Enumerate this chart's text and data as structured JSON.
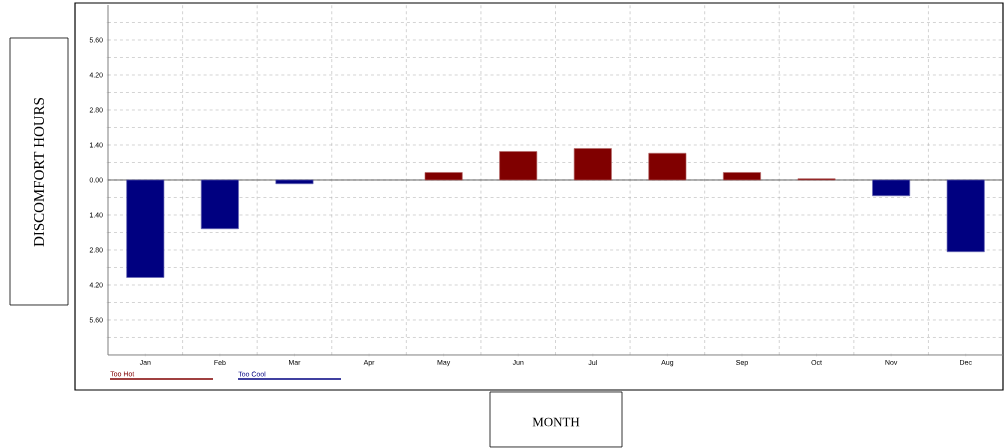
{
  "chart_data": {
    "type": "bar",
    "xlabel": "MONTH",
    "ylabel": "DISCOMFORT HOURS",
    "categories": [
      "Jan",
      "Feb",
      "Mar",
      "Apr",
      "May",
      "Jun",
      "Jul",
      "Aug",
      "Sep",
      "Oct",
      "Nov",
      "Dec"
    ],
    "series": [
      {
        "name": "Too Hot",
        "color": "#800000",
        "values": [
          null,
          null,
          null,
          null,
          0.3,
          1.14,
          1.26,
          1.07,
          0.3,
          0.05,
          null,
          null
        ]
      },
      {
        "name": "Too Cool",
        "color": "#000080",
        "values": [
          -3.9,
          -1.95,
          -0.15,
          null,
          null,
          null,
          null,
          null,
          null,
          null,
          -0.63,
          -2.87
        ]
      }
    ],
    "ylim": [
      -7.0,
      7.0
    ],
    "yticks": [
      {
        "value": -6.3,
        "label": null
      },
      {
        "value": -5.6,
        "label": "5.60"
      },
      {
        "value": -4.9,
        "label": null
      },
      {
        "value": -4.2,
        "label": "4.20"
      },
      {
        "value": -3.5,
        "label": null
      },
      {
        "value": -2.8,
        "label": "2.80"
      },
      {
        "value": -2.1,
        "label": null
      },
      {
        "value": -1.4,
        "label": "1.40"
      },
      {
        "value": -0.7,
        "label": null
      },
      {
        "value": 0,
        "label": "0.00"
      },
      {
        "value": 0.7,
        "label": null
      },
      {
        "value": 1.4,
        "label": "1.40"
      },
      {
        "value": 2.1,
        "label": null
      },
      {
        "value": 2.8,
        "label": "2.80"
      },
      {
        "value": 3.5,
        "label": null
      },
      {
        "value": 4.2,
        "label": "4.20"
      },
      {
        "value": 4.9,
        "label": null
      },
      {
        "value": 5.6,
        "label": "5.60"
      },
      {
        "value": 6.3,
        "label": null
      }
    ],
    "grid": true,
    "legend": "bottom left"
  }
}
